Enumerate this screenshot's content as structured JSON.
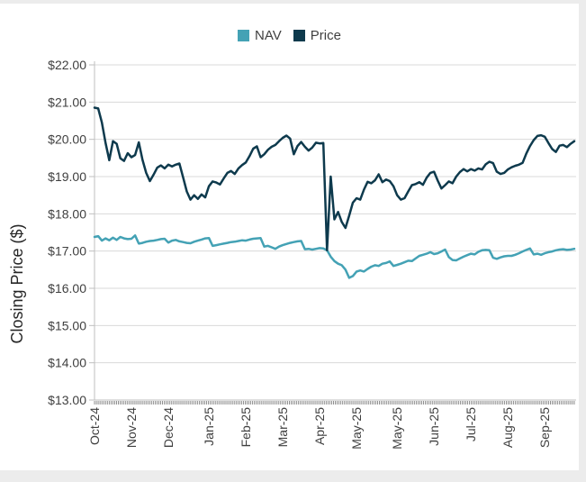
{
  "page": {
    "background_color": "#ececec",
    "card_color": "#ffffff"
  },
  "legend": {
    "items": [
      {
        "label": "NAV",
        "color_key": "nav"
      },
      {
        "label": "Price",
        "color_key": "price"
      }
    ]
  },
  "chart_data": {
    "type": "line",
    "title": "",
    "xlabel": "",
    "ylabel": "Closing Price ($)",
    "ylim": [
      13,
      22
    ],
    "grid": true,
    "legend_position": "top",
    "colors": {
      "nav": "#44a2b5",
      "price": "#0e3a4d",
      "grid": "#d9d9d9",
      "axis": "#bfbfbf",
      "tick": "#808080",
      "text": "#3f3f3f",
      "title_text": "#262626"
    },
    "yticks": [
      {
        "value": 22,
        "label": "$22.00"
      },
      {
        "value": 21,
        "label": "$21.00"
      },
      {
        "value": 20,
        "label": "$20.00"
      },
      {
        "value": 19,
        "label": "$19.00"
      },
      {
        "value": 18,
        "label": "$18.00"
      },
      {
        "value": 17,
        "label": "$17.00"
      },
      {
        "value": 16,
        "label": "$16.00"
      },
      {
        "value": 15,
        "label": "$15.00"
      },
      {
        "value": 14,
        "label": "$14.00"
      },
      {
        "value": 13,
        "label": "$13.00"
      }
    ],
    "xticks": [
      {
        "i": 0,
        "label": "Oct-24"
      },
      {
        "i": 10,
        "label": "Nov-24"
      },
      {
        "i": 20,
        "label": "Dec-24"
      },
      {
        "i": 31,
        "label": "Jan-25"
      },
      {
        "i": 41,
        "label": "Feb-25"
      },
      {
        "i": 51,
        "label": "Mar-25"
      },
      {
        "i": 61,
        "label": "Apr-25"
      },
      {
        "i": 71,
        "label": "May-25"
      },
      {
        "i": 82,
        "label": "May-25"
      },
      {
        "i": 92,
        "label": "Jun-25"
      },
      {
        "i": 102,
        "label": "Jul-25"
      },
      {
        "i": 112,
        "label": "Aug-25"
      },
      {
        "i": 122,
        "label": "Sep-25"
      }
    ],
    "series": [
      {
        "name": "NAV",
        "color_key": "nav",
        "values": [
          17.38,
          17.4,
          17.28,
          17.34,
          17.29,
          17.36,
          17.3,
          17.38,
          17.34,
          17.32,
          17.33,
          17.42,
          17.2,
          17.22,
          17.25,
          17.27,
          17.28,
          17.3,
          17.32,
          17.33,
          17.23,
          17.28,
          17.3,
          17.26,
          17.24,
          17.22,
          17.21,
          17.25,
          17.28,
          17.31,
          17.34,
          17.35,
          17.14,
          17.16,
          17.18,
          17.2,
          17.22,
          17.24,
          17.25,
          17.27,
          17.29,
          17.28,
          17.31,
          17.33,
          17.34,
          17.35,
          17.12,
          17.14,
          17.1,
          17.06,
          17.12,
          17.16,
          17.19,
          17.22,
          17.24,
          17.26,
          17.27,
          17.05,
          17.06,
          17.04,
          17.06,
          17.08,
          17.07,
          17.02,
          16.85,
          16.73,
          16.66,
          16.62,
          16.5,
          16.28,
          16.33,
          16.45,
          16.48,
          16.45,
          16.52,
          16.58,
          16.62,
          16.6,
          16.66,
          16.68,
          16.72,
          16.6,
          16.63,
          16.66,
          16.7,
          16.74,
          16.73,
          16.8,
          16.87,
          16.9,
          16.93,
          16.97,
          16.92,
          16.94,
          16.99,
          17.04,
          16.84,
          16.76,
          16.75,
          16.8,
          16.85,
          16.89,
          16.93,
          16.91,
          16.98,
          17.02,
          17.03,
          17.02,
          16.82,
          16.79,
          16.83,
          16.86,
          16.87,
          16.87,
          16.9,
          16.94,
          16.99,
          17.03,
          17.07,
          16.91,
          16.93,
          16.9,
          16.94,
          16.97,
          16.99,
          17.02,
          17.04,
          17.05,
          17.03,
          17.04,
          17.06
        ]
      },
      {
        "name": "Price",
        "color_key": "price",
        "values": [
          20.85,
          20.83,
          20.45,
          19.9,
          19.44,
          19.95,
          19.88,
          19.49,
          19.42,
          19.63,
          19.52,
          19.58,
          19.92,
          19.45,
          19.1,
          18.88,
          19.05,
          19.24,
          19.3,
          19.22,
          19.32,
          19.27,
          19.32,
          19.35,
          18.98,
          18.6,
          18.38,
          18.5,
          18.4,
          18.52,
          18.44,
          18.74,
          18.87,
          18.84,
          18.79,
          18.95,
          19.1,
          19.15,
          19.07,
          19.22,
          19.31,
          19.38,
          19.55,
          19.75,
          19.81,
          19.52,
          19.6,
          19.72,
          19.8,
          19.85,
          19.95,
          20.04,
          20.1,
          20.02,
          19.6,
          19.82,
          19.93,
          19.8,
          19.7,
          19.78,
          19.91,
          19.89,
          19.9,
          17.02,
          19.0,
          17.85,
          18.05,
          17.78,
          17.62,
          17.95,
          18.3,
          18.42,
          18.38,
          18.65,
          18.86,
          18.82,
          18.9,
          19.06,
          18.85,
          18.92,
          18.88,
          18.74,
          18.5,
          18.38,
          18.42,
          18.6,
          18.77,
          18.8,
          18.85,
          18.78,
          18.97,
          19.1,
          19.13,
          18.89,
          18.68,
          18.77,
          18.87,
          18.82,
          19.0,
          19.12,
          19.2,
          19.14,
          19.2,
          19.16,
          19.22,
          19.19,
          19.33,
          19.4,
          19.36,
          19.13,
          19.07,
          19.1,
          19.19,
          19.25,
          19.29,
          19.32,
          19.37,
          19.62,
          19.82,
          19.98,
          20.09,
          20.11,
          20.07,
          19.9,
          19.74,
          19.66,
          19.83,
          19.85,
          19.79,
          19.88,
          19.95
        ]
      }
    ]
  }
}
